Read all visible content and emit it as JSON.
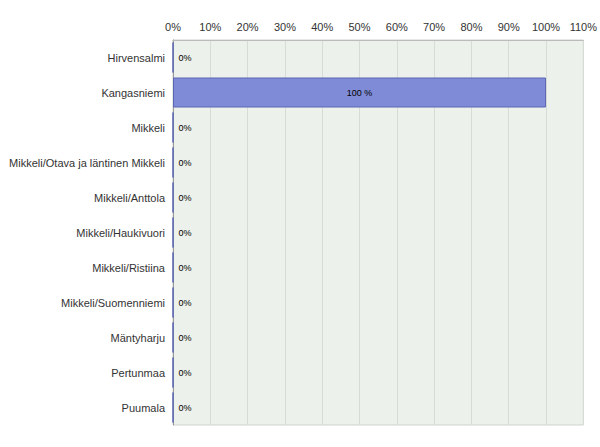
{
  "chart_data": {
    "type": "bar",
    "orientation": "horizontal",
    "categories": [
      "Hirvensalmi",
      "Kangasniemi",
      "Mikkeli",
      "Mikkeli/Otava ja läntinen Mikkeli",
      "Mikkeli/Anttola",
      "Mikkeli/Haukivuori",
      "Mikkeli/Ristiina",
      "Mikkeli/Suomenniemi",
      "Mäntyharju",
      "Pertunmaa",
      "Puumala"
    ],
    "values": [
      0,
      100,
      0,
      0,
      0,
      0,
      0,
      0,
      0,
      0,
      0
    ],
    "value_labels": [
      "0%",
      "100 %",
      "0%",
      "0%",
      "0%",
      "0%",
      "0%",
      "0%",
      "0%",
      "0%",
      "0%"
    ],
    "data_labels": true,
    "color": "#7f8bd6",
    "xlim": [
      0,
      110
    ],
    "xticks": [
      {
        "value": 0,
        "label": "0%"
      },
      {
        "value": 10,
        "label": "10%"
      },
      {
        "value": 20,
        "label": "20%"
      },
      {
        "value": 30,
        "label": "30%"
      },
      {
        "value": 40,
        "label": "40%"
      },
      {
        "value": 50,
        "label": "50%"
      },
      {
        "value": 60,
        "label": "60%"
      },
      {
        "value": 70,
        "label": "70%"
      },
      {
        "value": 80,
        "label": "80%"
      },
      {
        "value": 90,
        "label": "90%"
      },
      {
        "value": 100,
        "label": "100%"
      },
      {
        "value": 110,
        "label": "110%"
      }
    ],
    "grid": true
  }
}
